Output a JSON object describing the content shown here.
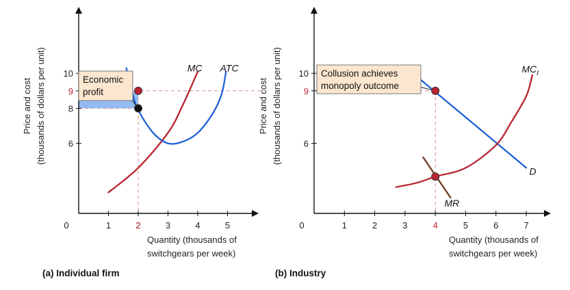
{
  "chart_data": [
    {
      "type": "line",
      "panel_caption": "(a) Individual firm",
      "ylabel_line1": "Price and cost",
      "ylabel_line2": "(thousands of dollars per unit)",
      "xlabel_line1": "Quantity (thousands of",
      "xlabel_line2": "switchgears per week)",
      "origin_label": "0",
      "xlim": [
        0,
        6
      ],
      "ylim": [
        2,
        11
      ],
      "x_ticks": [
        "1",
        "2",
        "3",
        "4",
        "5"
      ],
      "x_tick_values": [
        1,
        2,
        3,
        4,
        5
      ],
      "x_highlight": "2",
      "y_ticks": [
        "6",
        "8",
        "10"
      ],
      "y_tick_values": [
        6,
        8,
        10
      ],
      "y_highlight": "9",
      "y_highlight_value": 9,
      "series": [
        {
          "name": "MC",
          "color": "#b8232f",
          "x": [
            1,
            2,
            3,
            3.5,
            4
          ],
          "y": [
            3.2,
            4.6,
            6.6,
            8.2,
            10.1
          ]
        },
        {
          "name": "ATC",
          "color": "#1f5fd6",
          "x": [
            1.6,
            1.8,
            2,
            2.5,
            3,
            3.5,
            4,
            4.5,
            4.8,
            4.95
          ],
          "y": [
            10.3,
            8.9,
            7.9,
            6.6,
            6.0,
            6.1,
            6.6,
            7.7,
            8.8,
            10.1
          ]
        }
      ],
      "points": [
        {
          "x": 2,
          "y": 9,
          "color": "#b8232f"
        },
        {
          "x": 2,
          "y": 8,
          "color": "#111111"
        }
      ],
      "shaded_area": {
        "x": [
          0,
          2
        ],
        "y": [
          8,
          9
        ],
        "color": "#8cb8f0"
      },
      "annotation": {
        "line1": "Economic",
        "line2": "profit"
      }
    },
    {
      "type": "line",
      "panel_caption": "(b) Industry",
      "ylabel_line1": "Price and cost",
      "ylabel_line2": "(thousands of dollars per unit)",
      "xlabel_line1": "Quantity (thousands of",
      "xlabel_line2": "switchgears per week)",
      "origin_label": "0",
      "xlim": [
        0,
        8
      ],
      "ylim": [
        2,
        11
      ],
      "x_ticks": [
        "1",
        "2",
        "3",
        "5",
        "6",
        "7"
      ],
      "x_tick_values": [
        1,
        2,
        3,
        5,
        6,
        7
      ],
      "x_highlight": "4",
      "x_highlight_value": 4,
      "y_ticks": [
        "6",
        "10"
      ],
      "y_tick_values": [
        6,
        10
      ],
      "y_highlight": "9",
      "y_highlight_value": 9,
      "series": [
        {
          "name": "D",
          "color": "#1f5fd6",
          "x": [
            3.4,
            7
          ],
          "y": [
            9.8,
            4.6
          ]
        },
        {
          "name": "MR",
          "color": "#6b3a1f",
          "x": [
            3.6,
            4.5
          ],
          "y": [
            5.2,
            2.9
          ]
        },
        {
          "name": "MC",
          "name_subscript": "I",
          "color": "#b8232f",
          "x": [
            2.7,
            3.4,
            4,
            5,
            6,
            6.5,
            7,
            7.2
          ],
          "y": [
            3.5,
            3.75,
            4.1,
            4.6,
            5.9,
            7.2,
            8.7,
            9.9
          ]
        }
      ],
      "points": [
        {
          "x": 4,
          "y": 9,
          "color": "#b8232f"
        },
        {
          "x": 4,
          "y": 4.1,
          "color": "#b8232f"
        }
      ],
      "annotation": {
        "line1": "Collusion achieves",
        "line2": "monopoly outcome"
      }
    }
  ]
}
